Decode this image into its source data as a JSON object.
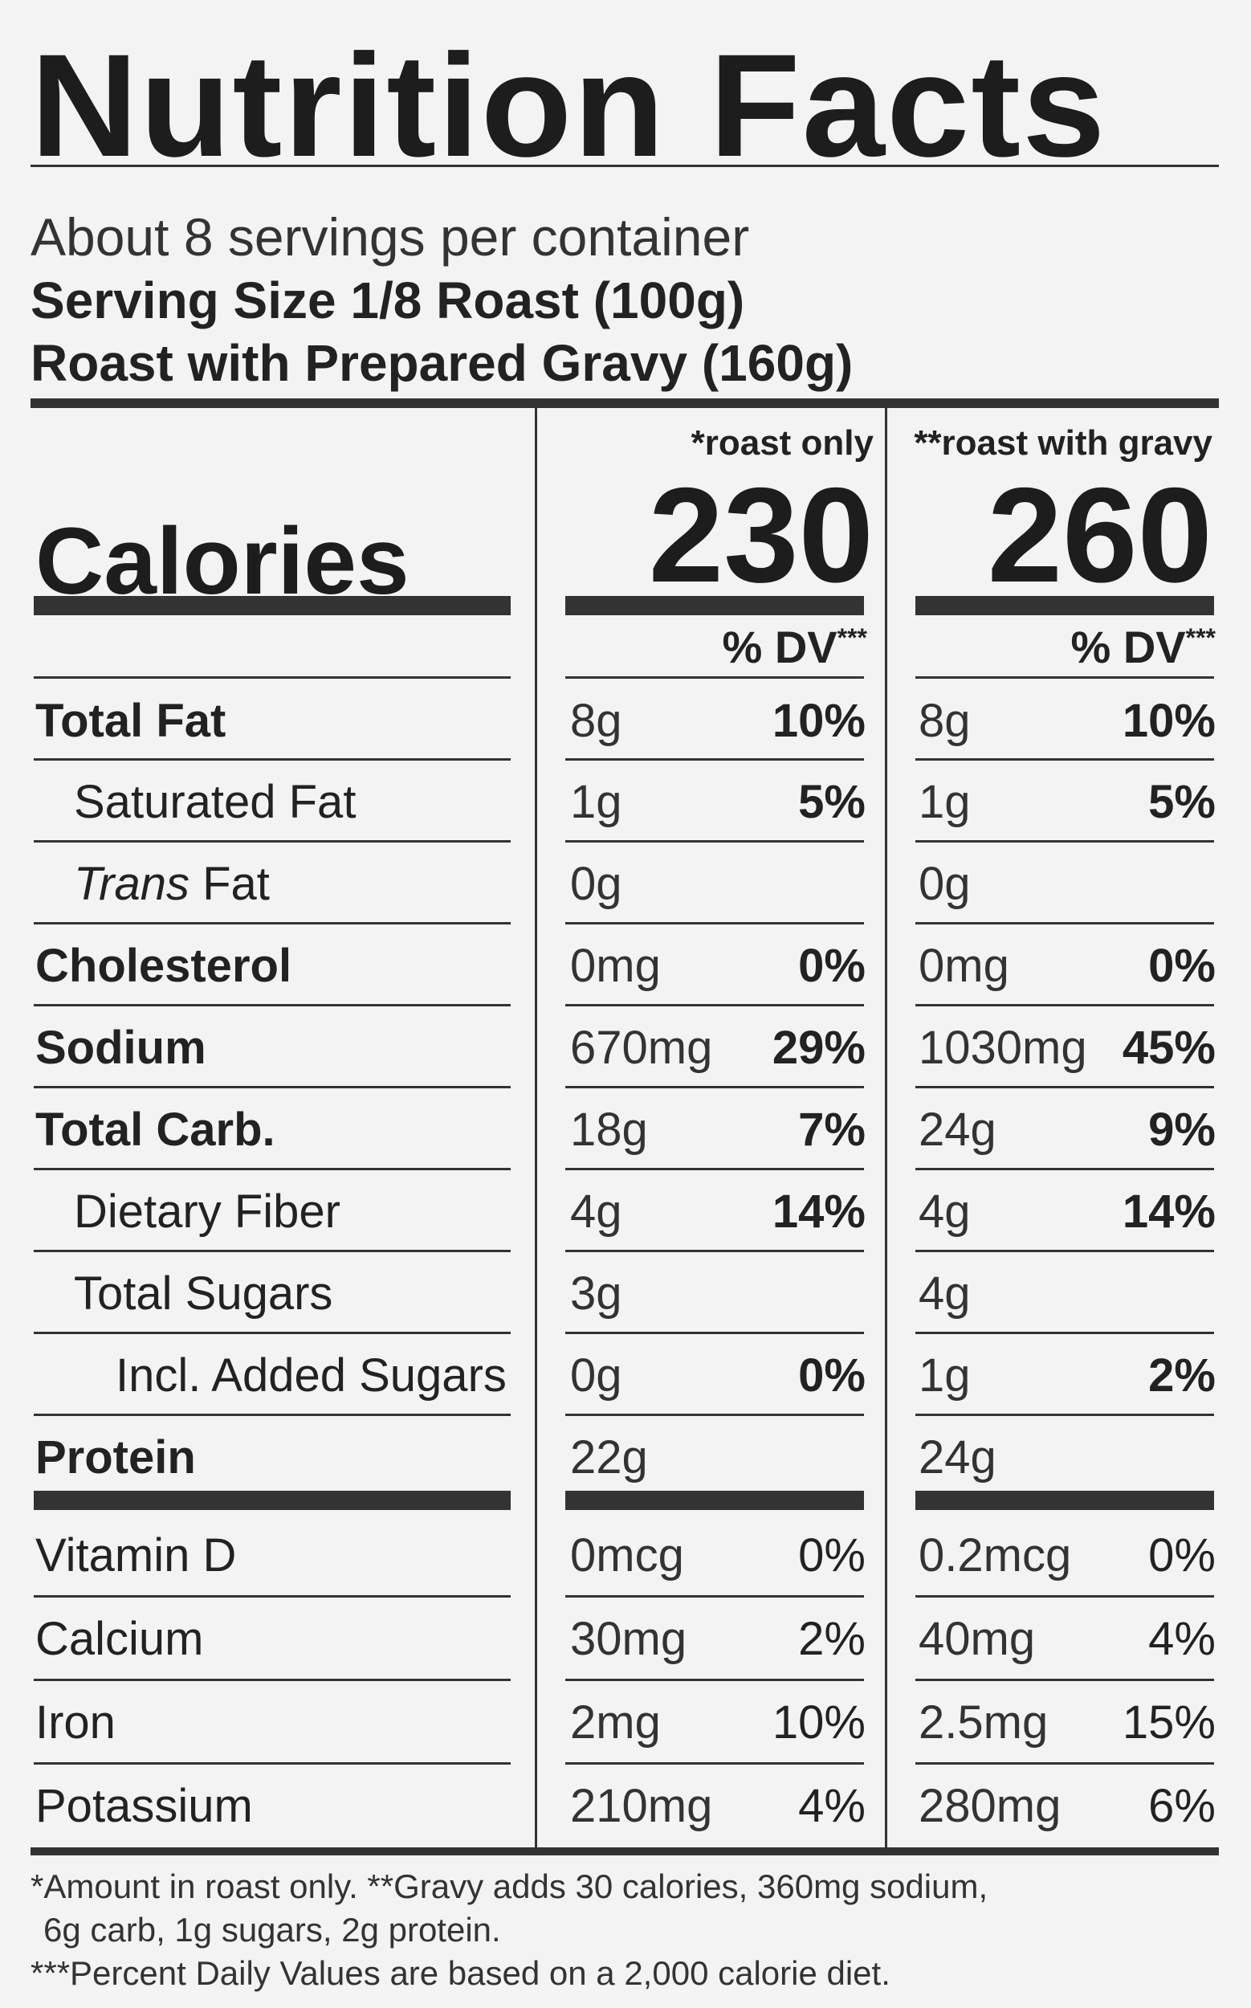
{
  "title": "Nutrition Facts",
  "servings_per_container": "About 8 servings per container",
  "serving_size": "Serving Size 1/8 Roast (100g)",
  "serving_size_gravy": "Roast with Prepared Gravy (160g)",
  "columns": [
    {
      "header": "*roast only",
      "calories": "230",
      "dv_label": "% DV",
      "dv_mark": "***"
    },
    {
      "header": "**roast with gravy",
      "calories": "260",
      "dv_label": "% DV",
      "dv_mark": "***"
    }
  ],
  "calories_label": "Calories",
  "nutrients": [
    {
      "name": "Total Fat",
      "bold": true,
      "indent": 0,
      "roast": {
        "amount": "8g",
        "dv": "10%"
      },
      "gravy": {
        "amount": "8g",
        "dv": "10%"
      }
    },
    {
      "name": "Saturated Fat",
      "bold": false,
      "indent": 1,
      "roast": {
        "amount": "1g",
        "dv": "5%"
      },
      "gravy": {
        "amount": "1g",
        "dv": "5%"
      }
    },
    {
      "name": "Trans",
      "name_suffix": " Fat",
      "italic_prefix": true,
      "bold": false,
      "indent": 1,
      "roast": {
        "amount": "0g",
        "dv": ""
      },
      "gravy": {
        "amount": "0g",
        "dv": ""
      }
    },
    {
      "name": "Cholesterol",
      "bold": true,
      "indent": 0,
      "roast": {
        "amount": "0mg",
        "dv": "0%"
      },
      "gravy": {
        "amount": "0mg",
        "dv": "0%"
      }
    },
    {
      "name": "Sodium",
      "bold": true,
      "indent": 0,
      "roast": {
        "amount": "670mg",
        "dv": "29%"
      },
      "gravy": {
        "amount": "1030mg",
        "dv": "45%"
      }
    },
    {
      "name": "Total Carb.",
      "bold": true,
      "indent": 0,
      "roast": {
        "amount": "18g",
        "dv": "7%"
      },
      "gravy": {
        "amount": "24g",
        "dv": "9%"
      }
    },
    {
      "name": "Dietary Fiber",
      "bold": false,
      "indent": 1,
      "roast": {
        "amount": "4g",
        "dv": "14%"
      },
      "gravy": {
        "amount": "4g",
        "dv": "14%"
      }
    },
    {
      "name": "Total Sugars",
      "bold": false,
      "indent": 1,
      "roast": {
        "amount": "3g",
        "dv": ""
      },
      "gravy": {
        "amount": "4g",
        "dv": ""
      }
    },
    {
      "name": "Incl. Added Sugars",
      "bold": false,
      "indent": 2,
      "roast": {
        "amount": "0g",
        "dv": "0%"
      },
      "gravy": {
        "amount": "1g",
        "dv": "2%"
      }
    },
    {
      "name": "Protein",
      "bold": true,
      "indent": 0,
      "roast": {
        "amount": "22g",
        "dv": ""
      },
      "gravy": {
        "amount": "24g",
        "dv": ""
      }
    }
  ],
  "vitamins": [
    {
      "name": "Vitamin D",
      "roast": {
        "amount": "0mcg",
        "dv": "0%"
      },
      "gravy": {
        "amount": "0.2mcg",
        "dv": "0%"
      }
    },
    {
      "name": "Calcium",
      "roast": {
        "amount": "30mg",
        "dv": "2%"
      },
      "gravy": {
        "amount": "40mg",
        "dv": "4%"
      }
    },
    {
      "name": "Iron",
      "roast": {
        "amount": "2mg",
        "dv": "10%"
      },
      "gravy": {
        "amount": "2.5mg",
        "dv": "15%"
      }
    },
    {
      "name": "Potassium",
      "roast": {
        "amount": "210mg",
        "dv": "4%"
      },
      "gravy": {
        "amount": "280mg",
        "dv": "6%"
      }
    }
  ],
  "footnotes": [
    "*Amount in roast only. **Gravy adds 30 calories, 360mg sodium,",
    "6g carb, 1g sugars, 2g protein.",
    "***Percent Daily Values are based on a 2,000 calorie diet."
  ]
}
